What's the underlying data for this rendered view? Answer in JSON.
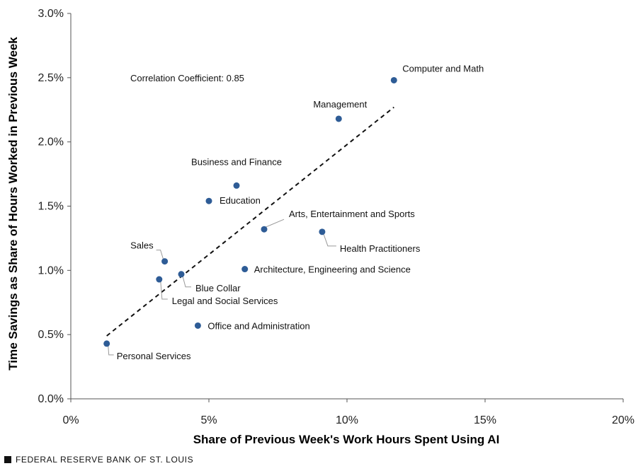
{
  "chart_data": {
    "type": "scatter",
    "xlabel": "Share of Previous Week's Work Hours Spent Using AI",
    "ylabel": "Time Savings as Share of Hours Worked in Previous Week",
    "xlim": [
      0,
      20
    ],
    "ylim": [
      0,
      3.0
    ],
    "x_ticks": [
      "0%",
      "5%",
      "10%",
      "15%",
      "20%"
    ],
    "y_ticks": [
      "0.0%",
      "0.5%",
      "1.0%",
      "1.5%",
      "2.0%",
      "2.5%",
      "3.0%"
    ],
    "annotation": "Correlation Coefficient: 0.85",
    "marker_color": "#2e5c96",
    "trendline": {
      "style": "dashed",
      "x": [
        1.3,
        11.7
      ],
      "y": [
        0.49,
        2.27
      ]
    },
    "points": [
      {
        "label": "Computer and Math",
        "x": 11.7,
        "y": 2.48
      },
      {
        "label": "Management",
        "x": 9.7,
        "y": 2.18
      },
      {
        "label": "Business and Finance",
        "x": 6.0,
        "y": 1.66
      },
      {
        "label": "Education",
        "x": 5.0,
        "y": 1.54
      },
      {
        "label": "Arts, Entertainment and Sports",
        "x": 7.0,
        "y": 1.32
      },
      {
        "label": "Health Practitioners",
        "x": 9.1,
        "y": 1.3
      },
      {
        "label": "Sales",
        "x": 3.4,
        "y": 1.07
      },
      {
        "label": "Architecture, Engineering and Science",
        "x": 6.3,
        "y": 1.01
      },
      {
        "label": "Blue Collar",
        "x": 4.0,
        "y": 0.97
      },
      {
        "label": "Legal and Social Services",
        "x": 3.2,
        "y": 0.93
      },
      {
        "label": "Office and Administration",
        "x": 4.6,
        "y": 0.57
      },
      {
        "label": "Personal Services",
        "x": 1.3,
        "y": 0.43
      }
    ]
  },
  "footer": {
    "text": "FEDERAL RESERVE BANK OF ST. LOUIS"
  }
}
